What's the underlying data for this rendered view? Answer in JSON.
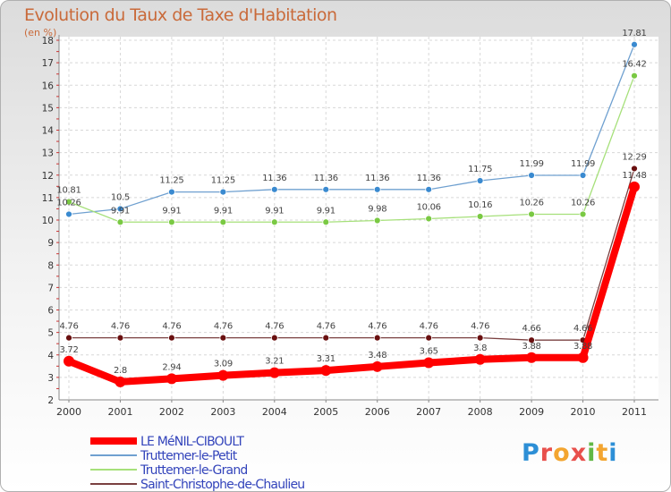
{
  "title": "Evolution du Taux de Taxe d'Habitation",
  "subtitle": "(en %)",
  "logo": {
    "letters": [
      "P",
      "r",
      "o",
      "x",
      "i",
      "t",
      "i"
    ],
    "colors": [
      "#2d8fd6",
      "#e8504c",
      "#f3a530",
      "#e8504c",
      "#62b845",
      "#f3a530",
      "#2d8fd6"
    ]
  },
  "chart_data": {
    "type": "line",
    "x": [
      "2000",
      "2001",
      "2002",
      "2003",
      "2004",
      "2005",
      "2006",
      "2007",
      "2008",
      "2009",
      "2010",
      "2011"
    ],
    "ylim": [
      2,
      18
    ],
    "yticks": [
      "2",
      "3",
      "4",
      "5",
      "6",
      "7",
      "8",
      "9",
      "10",
      "11",
      "12",
      "13",
      "14",
      "15",
      "16",
      "17",
      "18"
    ],
    "grid": true,
    "legend_position": "bottom-left",
    "series": [
      {
        "name": "LE MéNIL-CIBOULT",
        "color": "#ff0000",
        "marker": "#ff0000",
        "values": [
          3.72,
          2.8,
          2.94,
          3.09,
          3.21,
          3.31,
          3.48,
          3.65,
          3.8,
          3.88,
          3.88,
          11.48
        ],
        "labels": [
          "3.72",
          "2.8",
          "2.94",
          "3.09",
          "3.21",
          "3.31",
          "3.48",
          "3.65",
          "3.8",
          "3.88",
          "3.88",
          "11.48"
        ],
        "bold": true
      },
      {
        "name": "Truttemer-le-Petit",
        "color": "#6fa0d0",
        "marker": "#3a8ad0",
        "values": [
          10.26,
          10.5,
          11.25,
          11.25,
          11.36,
          11.36,
          11.36,
          11.36,
          11.75,
          11.99,
          11.99,
          17.81
        ],
        "labels": [
          "10.26",
          "10.5",
          "11.25",
          "11.25",
          "11.36",
          "11.36",
          "11.36",
          "11.36",
          "11.75",
          "11.99",
          "11.99",
          "17.81"
        ],
        "bold": false
      },
      {
        "name": "Truttemer-le-Grand",
        "color": "#a6e07a",
        "marker": "#7ac943",
        "values": [
          10.81,
          9.91,
          9.91,
          9.91,
          9.91,
          9.91,
          9.98,
          10.06,
          10.16,
          10.26,
          10.26,
          16.42
        ],
        "labels": [
          "10.81",
          "9.91",
          "9.91",
          "9.91",
          "9.91",
          "9.91",
          "9.98",
          "10.06",
          "10.16",
          "10.26",
          "10.26",
          "16.42"
        ],
        "bold": false
      },
      {
        "name": "Saint-Christophe-de-Chaulieu",
        "color": "#7a4040",
        "marker": "#6a1010",
        "values": [
          4.76,
          4.76,
          4.76,
          4.76,
          4.76,
          4.76,
          4.76,
          4.76,
          4.76,
          4.66,
          4.66,
          12.29
        ],
        "labels": [
          "4.76",
          "4.76",
          "4.76",
          "4.76",
          "4.76",
          "4.76",
          "4.76",
          "4.76",
          "4.76",
          "4.66",
          "4.66",
          "12.29"
        ],
        "bold": false
      }
    ]
  }
}
